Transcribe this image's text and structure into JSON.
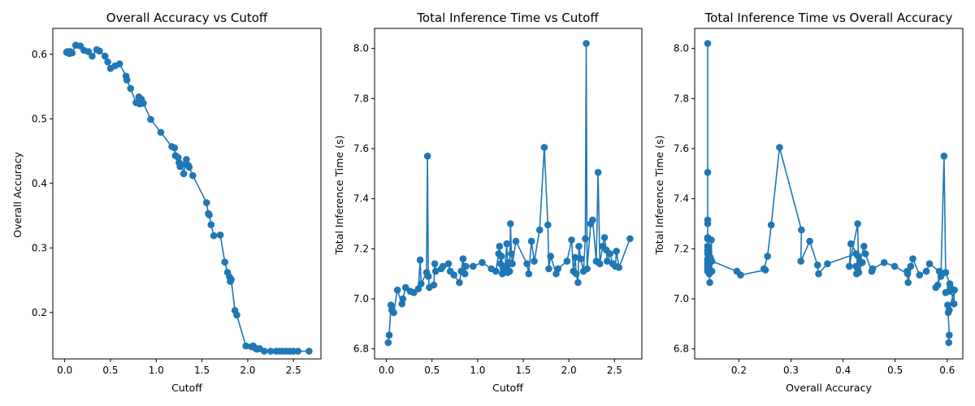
{
  "chart_data": [
    {
      "type": "scatter",
      "connected": true,
      "title": "Overall Accuracy vs Cutoff",
      "xlabel": "Cutoff",
      "ylabel": "Overall Accuracy",
      "xlim": [
        -0.13,
        2.8
      ],
      "ylim": [
        0.128,
        0.64
      ],
      "xticks": [
        0.0,
        0.5,
        1.0,
        1.5,
        2.0,
        2.5
      ],
      "xtick_labels": [
        "0.0",
        "0.5",
        "1.0",
        "1.5",
        "2.0",
        "2.5"
      ],
      "yticks": [
        0.2,
        0.3,
        0.4,
        0.5,
        0.6
      ],
      "ytick_labels": [
        "0.2",
        "0.3",
        "0.4",
        "0.5",
        "0.6"
      ],
      "grid": false,
      "color": "#1f77b4",
      "points": [
        [
          0.02,
          0.603
        ],
        [
          0.03,
          0.604
        ],
        [
          0.05,
          0.601
        ],
        [
          0.06,
          0.604
        ],
        [
          0.08,
          0.602
        ],
        [
          0.12,
          0.614
        ],
        [
          0.17,
          0.613
        ],
        [
          0.21,
          0.606
        ],
        [
          0.26,
          0.604
        ],
        [
          0.3,
          0.597
        ],
        [
          0.35,
          0.607
        ],
        [
          0.38,
          0.605
        ],
        [
          0.44,
          0.597
        ],
        [
          0.47,
          0.588
        ],
        [
          0.5,
          0.578
        ],
        [
          0.55,
          0.582
        ],
        [
          0.6,
          0.585
        ],
        [
          0.67,
          0.566
        ],
        [
          0.68,
          0.56
        ],
        [
          0.72,
          0.547
        ],
        [
          0.78,
          0.525
        ],
        [
          0.81,
          0.534
        ],
        [
          0.82,
          0.523
        ],
        [
          0.84,
          0.53
        ],
        [
          0.86,
          0.524
        ],
        [
          0.94,
          0.499
        ],
        [
          1.05,
          0.479
        ],
        [
          1.17,
          0.457
        ],
        [
          1.2,
          0.455
        ],
        [
          1.21,
          0.443
        ],
        [
          1.24,
          0.44
        ],
        [
          1.25,
          0.432
        ],
        [
          1.26,
          0.426
        ],
        [
          1.28,
          0.429
        ],
        [
          1.3,
          0.415
        ],
        [
          1.33,
          0.437
        ],
        [
          1.35,
          0.428
        ],
        [
          1.36,
          0.425
        ],
        [
          1.4,
          0.412
        ],
        [
          1.55,
          0.37
        ],
        [
          1.57,
          0.353
        ],
        [
          1.58,
          0.351
        ],
        [
          1.6,
          0.336
        ],
        [
          1.63,
          0.319
        ],
        [
          1.7,
          0.32
        ],
        [
          1.75,
          0.278
        ],
        [
          1.78,
          0.262
        ],
        [
          1.8,
          0.255
        ],
        [
          1.81,
          0.248
        ],
        [
          1.82,
          0.251
        ],
        [
          1.86,
          0.203
        ],
        [
          1.88,
          0.196
        ],
        [
          1.98,
          0.148
        ],
        [
          2.04,
          0.147
        ],
        [
          2.06,
          0.148
        ],
        [
          2.08,
          0.145
        ],
        [
          2.1,
          0.143
        ],
        [
          2.13,
          0.144
        ],
        [
          2.18,
          0.14
        ],
        [
          2.25,
          0.14
        ],
        [
          2.31,
          0.14
        ],
        [
          2.35,
          0.14
        ],
        [
          2.38,
          0.14
        ],
        [
          2.42,
          0.14
        ],
        [
          2.46,
          0.14
        ],
        [
          2.5,
          0.14
        ],
        [
          2.55,
          0.14
        ],
        [
          2.67,
          0.14
        ]
      ]
    },
    {
      "type": "scatter",
      "connected": true,
      "title": "Total Inference Time vs Cutoff",
      "xlabel": "Cutoff",
      "ylabel": "Total Inference Time (s)",
      "xlim": [
        -0.13,
        2.8
      ],
      "ylim": [
        6.76,
        8.08
      ],
      "xticks": [
        0.0,
        0.5,
        1.0,
        1.5,
        2.0,
        2.5
      ],
      "xtick_labels": [
        "0.0",
        "0.5",
        "1.0",
        "1.5",
        "2.0",
        "2.5"
      ],
      "yticks": [
        6.8,
        7.0,
        7.2,
        7.4,
        7.6,
        7.8,
        8.0
      ],
      "ytick_labels": [
        "6.8",
        "7.0",
        "7.2",
        "7.4",
        "7.6",
        "7.8",
        "8.0"
      ],
      "grid": false,
      "color": "#1f77b4",
      "points": [
        [
          0.02,
          6.825
        ],
        [
          0.03,
          6.855
        ],
        [
          0.05,
          6.975
        ],
        [
          0.06,
          6.955
        ],
        [
          0.08,
          6.945
        ],
        [
          0.12,
          7.035
        ],
        [
          0.17,
          6.98
        ],
        [
          0.18,
          7.0
        ],
        [
          0.21,
          7.045
        ],
        [
          0.26,
          7.03
        ],
        [
          0.3,
          7.025
        ],
        [
          0.35,
          7.04
        ],
        [
          0.37,
          7.155
        ],
        [
          0.38,
          7.06
        ],
        [
          0.44,
          7.105
        ],
        [
          0.45,
          7.57
        ],
        [
          0.46,
          7.09
        ],
        [
          0.47,
          7.045
        ],
        [
          0.52,
          7.055
        ],
        [
          0.53,
          7.14
        ],
        [
          0.54,
          7.11
        ],
        [
          0.6,
          7.12
        ],
        [
          0.62,
          7.13
        ],
        [
          0.68,
          7.14
        ],
        [
          0.7,
          7.11
        ],
        [
          0.74,
          7.095
        ],
        [
          0.8,
          7.065
        ],
        [
          0.82,
          7.11
        ],
        [
          0.84,
          7.16
        ],
        [
          0.86,
          7.1
        ],
        [
          0.87,
          7.13
        ],
        [
          0.95,
          7.13
        ],
        [
          1.05,
          7.145
        ],
        [
          1.15,
          7.12
        ],
        [
          1.2,
          7.11
        ],
        [
          1.23,
          7.18
        ],
        [
          1.24,
          7.21
        ],
        [
          1.25,
          7.14
        ],
        [
          1.26,
          7.17
        ],
        [
          1.27,
          7.1
        ],
        [
          1.28,
          7.12
        ],
        [
          1.3,
          7.13
        ],
        [
          1.32,
          7.22
        ],
        [
          1.33,
          7.105
        ],
        [
          1.34,
          7.145
        ],
        [
          1.35,
          7.11
        ],
        [
          1.36,
          7.3
        ],
        [
          1.37,
          7.18
        ],
        [
          1.38,
          7.14
        ],
        [
          1.42,
          7.23
        ],
        [
          1.54,
          7.14
        ],
        [
          1.56,
          7.1
        ],
        [
          1.59,
          7.23
        ],
        [
          1.62,
          7.15
        ],
        [
          1.68,
          7.275
        ],
        [
          1.73,
          7.605
        ],
        [
          1.77,
          7.295
        ],
        [
          1.78,
          7.12
        ],
        [
          1.8,
          7.17
        ],
        [
          1.86,
          7.1
        ],
        [
          1.88,
          7.12
        ],
        [
          1.98,
          7.15
        ],
        [
          2.03,
          7.235
        ],
        [
          2.05,
          7.11
        ],
        [
          2.07,
          7.165
        ],
        [
          2.08,
          7.1
        ],
        [
          2.1,
          7.065
        ],
        [
          2.11,
          7.21
        ],
        [
          2.13,
          7.16
        ],
        [
          2.16,
          7.11
        ],
        [
          2.18,
          7.24
        ],
        [
          2.19,
          8.02
        ],
        [
          2.2,
          7.12
        ],
        [
          2.24,
          7.3
        ],
        [
          2.26,
          7.315
        ],
        [
          2.3,
          7.15
        ],
        [
          2.32,
          7.505
        ],
        [
          2.34,
          7.14
        ],
        [
          2.37,
          7.21
        ],
        [
          2.39,
          7.245
        ],
        [
          2.41,
          7.195
        ],
        [
          2.42,
          7.15
        ],
        [
          2.45,
          7.18
        ],
        [
          2.48,
          7.14
        ],
        [
          2.51,
          7.13
        ],
        [
          2.52,
          7.19
        ],
        [
          2.55,
          7.125
        ],
        [
          2.67,
          7.24
        ]
      ]
    },
    {
      "type": "scatter",
      "connected": true,
      "title": "Total Inference Time vs Overall Accuracy",
      "xlabel": "Overall Accuracy",
      "ylabel": "Total Inference Time (s)",
      "xlim": [
        0.115,
        0.63
      ],
      "ylim": [
        6.76,
        8.08
      ],
      "xticks": [
        0.2,
        0.3,
        0.4,
        0.5,
        0.6
      ],
      "xtick_labels": [
        "0.2",
        "0.3",
        "0.4",
        "0.5",
        "0.6"
      ],
      "yticks": [
        6.8,
        7.0,
        7.2,
        7.4,
        7.6,
        7.8,
        8.0
      ],
      "ytick_labels": [
        "6.8",
        "7.0",
        "7.2",
        "7.4",
        "7.6",
        "7.8",
        "8.0"
      ],
      "grid": false,
      "color": "#1f77b4",
      "points": [
        [
          0.603,
          6.825
        ],
        [
          0.604,
          6.855
        ],
        [
          0.601,
          6.975
        ],
        [
          0.604,
          6.955
        ],
        [
          0.602,
          6.945
        ],
        [
          0.614,
          7.035
        ],
        [
          0.613,
          6.98
        ],
        [
          0.606,
          7.045
        ],
        [
          0.604,
          7.03
        ],
        [
          0.597,
          7.025
        ],
        [
          0.607,
          7.04
        ],
        [
          0.605,
          7.06
        ],
        [
          0.597,
          7.105
        ],
        [
          0.594,
          7.57
        ],
        [
          0.588,
          7.09
        ],
        [
          0.578,
          7.045
        ],
        [
          0.582,
          7.055
        ],
        [
          0.585,
          7.11
        ],
        [
          0.566,
          7.14
        ],
        [
          0.56,
          7.11
        ],
        [
          0.547,
          7.095
        ],
        [
          0.534,
          7.16
        ],
        [
          0.525,
          7.065
        ],
        [
          0.523,
          7.11
        ],
        [
          0.53,
          7.13
        ],
        [
          0.524,
          7.1
        ],
        [
          0.499,
          7.13
        ],
        [
          0.479,
          7.145
        ],
        [
          0.457,
          7.12
        ],
        [
          0.455,
          7.11
        ],
        [
          0.443,
          7.18
        ],
        [
          0.44,
          7.21
        ],
        [
          0.432,
          7.14
        ],
        [
          0.429,
          7.17
        ],
        [
          0.426,
          7.1
        ],
        [
          0.428,
          7.12
        ],
        [
          0.425,
          7.13
        ],
        [
          0.437,
          7.145
        ],
        [
          0.415,
          7.22
        ],
        [
          0.412,
          7.13
        ],
        [
          0.428,
          7.3
        ],
        [
          0.43,
          7.105
        ],
        [
          0.432,
          7.15
        ],
        [
          0.425,
          7.18
        ],
        [
          0.37,
          7.14
        ],
        [
          0.353,
          7.1
        ],
        [
          0.351,
          7.135
        ],
        [
          0.336,
          7.23
        ],
        [
          0.319,
          7.15
        ],
        [
          0.32,
          7.275
        ],
        [
          0.278,
          7.605
        ],
        [
          0.262,
          7.295
        ],
        [
          0.255,
          7.17
        ],
        [
          0.248,
          7.12
        ],
        [
          0.251,
          7.115
        ],
        [
          0.203,
          7.095
        ],
        [
          0.196,
          7.11
        ],
        [
          0.148,
          7.15
        ],
        [
          0.147,
          7.235
        ],
        [
          0.148,
          7.11
        ],
        [
          0.145,
          7.165
        ],
        [
          0.143,
          7.1
        ],
        [
          0.144,
          7.065
        ],
        [
          0.14,
          7.21
        ],
        [
          0.14,
          7.16
        ],
        [
          0.14,
          7.11
        ],
        [
          0.14,
          7.24
        ],
        [
          0.14,
          8.02
        ],
        [
          0.14,
          7.12
        ],
        [
          0.14,
          7.3
        ],
        [
          0.14,
          7.315
        ],
        [
          0.14,
          7.15
        ],
        [
          0.14,
          7.505
        ],
        [
          0.14,
          7.14
        ],
        [
          0.14,
          7.21
        ],
        [
          0.14,
          7.245
        ],
        [
          0.14,
          7.195
        ],
        [
          0.14,
          7.15
        ],
        [
          0.14,
          7.18
        ],
        [
          0.14,
          7.14
        ],
        [
          0.14,
          7.13
        ],
        [
          0.14,
          7.19
        ],
        [
          0.14,
          7.125
        ],
        [
          0.14,
          7.24
        ]
      ]
    }
  ]
}
